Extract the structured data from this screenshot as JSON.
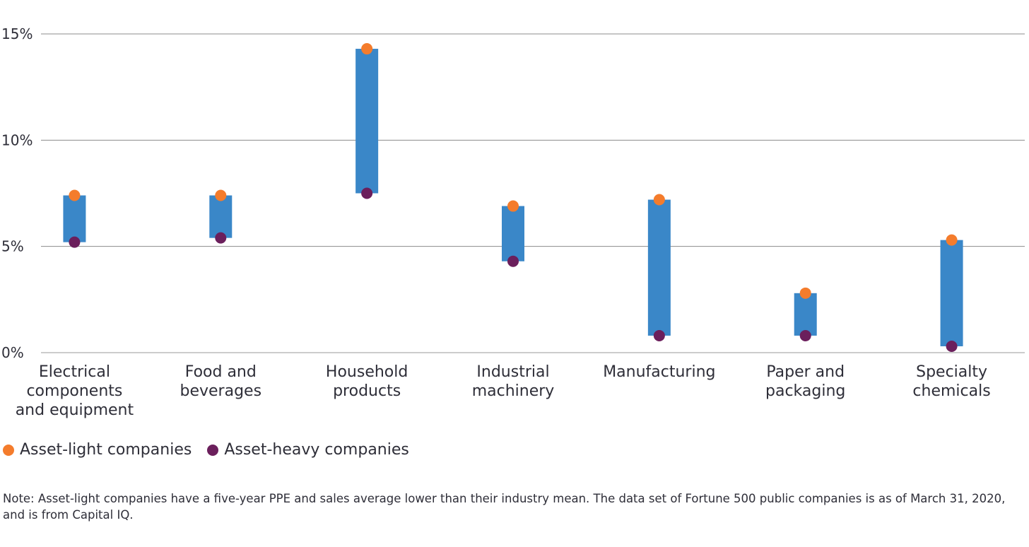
{
  "chart_data": {
    "type": "range-bar",
    "categories": [
      [
        "Electrical",
        "components",
        "and equipment"
      ],
      [
        "Food and",
        "beverages"
      ],
      [
        "Household",
        "products"
      ],
      [
        "Industrial",
        "machinery"
      ],
      [
        "Manufacturing"
      ],
      [
        "Paper and",
        "packaging"
      ],
      [
        "Specialty",
        "chemicals"
      ]
    ],
    "series": [
      {
        "name": "Asset-light companies",
        "color": "#f47c2c",
        "values": [
          7.4,
          7.4,
          14.3,
          6.9,
          7.2,
          2.8,
          5.3
        ]
      },
      {
        "name": "Asset-heavy companies",
        "color": "#6b1f5c",
        "values": [
          5.2,
          5.4,
          7.5,
          4.3,
          0.8,
          0.8,
          0.3
        ]
      }
    ],
    "bar_color": "#3a87c8",
    "y_ticks": [
      "0%",
      "5%",
      "10%",
      "15%"
    ],
    "y_tick_values": [
      0,
      5,
      10,
      15
    ],
    "ylim": [
      0,
      15
    ],
    "grid": true
  },
  "legend": {
    "items": [
      {
        "label": "Asset-light companies",
        "color": "#f47c2c"
      },
      {
        "label": "Asset-heavy companies",
        "color": "#6b1f5c"
      }
    ]
  },
  "note": {
    "line1": "Note: Asset-light companies have a five-year PPE and sales average lower than their industry mean. The data set of Fortune 500 public companies is as of March 31, 2020,",
    "line2": "and is from Capital IQ."
  }
}
